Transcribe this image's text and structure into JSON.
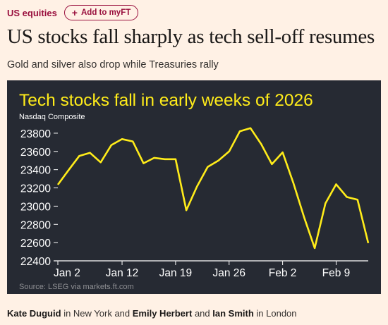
{
  "topline": {
    "section": "US equities",
    "myft_label": "Add to myFT"
  },
  "article": {
    "headline": "US stocks fall sharply as tech sell-off resumes",
    "standfirst": "Gold and silver also drop while Treasuries rally",
    "byline": {
      "author1": "Kate Duguid",
      "location1": "in New York and",
      "author2": "Emily Herbert",
      "conj": "and",
      "author3": "Ian Smith",
      "location2": "in London"
    }
  },
  "colors": {
    "chart_bg": "#262a33",
    "line": "#ffec1a",
    "title": "#ffec1a",
    "accent": "#990f3d"
  },
  "chart_data": {
    "type": "line",
    "title": "Tech stocks fall in early weeks of 2026",
    "subtitle": "Nasdaq Composite",
    "source": "Source: LSEG via markets.ft.com",
    "categories": [
      "Jan 2",
      "Jan 5",
      "Jan 6",
      "Jan 7",
      "Jan 8",
      "Jan 9",
      "Jan 12",
      "Jan 13",
      "Jan 14",
      "Jan 15",
      "Jan 16",
      "Jan 19",
      "Jan 20",
      "Jan 21",
      "Jan 22",
      "Jan 23",
      "Jan 26",
      "Jan 27",
      "Jan 28",
      "Jan 29",
      "Jan 30",
      "Feb 2",
      "Feb 3",
      "Feb 4",
      "Feb 5",
      "Feb 6",
      "Feb 9",
      "Feb 10",
      "Feb 11",
      "Feb 12"
    ],
    "values": [
      23235,
      23395,
      23550,
      23585,
      23480,
      23670,
      23735,
      23710,
      23470,
      23530,
      23515,
      23515,
      22955,
      23215,
      23430,
      23500,
      23600,
      23820,
      23855,
      23680,
      23460,
      23590,
      23255,
      22880,
      22540,
      23030,
      23240,
      23100,
      23070,
      22595
    ],
    "x_ticks": [
      "Jan 2",
      "Jan 12",
      "Jan 19",
      "Jan 26",
      "Feb 2",
      "Feb 9"
    ],
    "x_tick_index": [
      0,
      6,
      11,
      16,
      21,
      26
    ],
    "y_ticks": [
      22400,
      22600,
      22800,
      23000,
      23200,
      23400,
      23600,
      23800
    ],
    "ylim": [
      22400,
      23900
    ],
    "grid": false,
    "legend": "none"
  }
}
